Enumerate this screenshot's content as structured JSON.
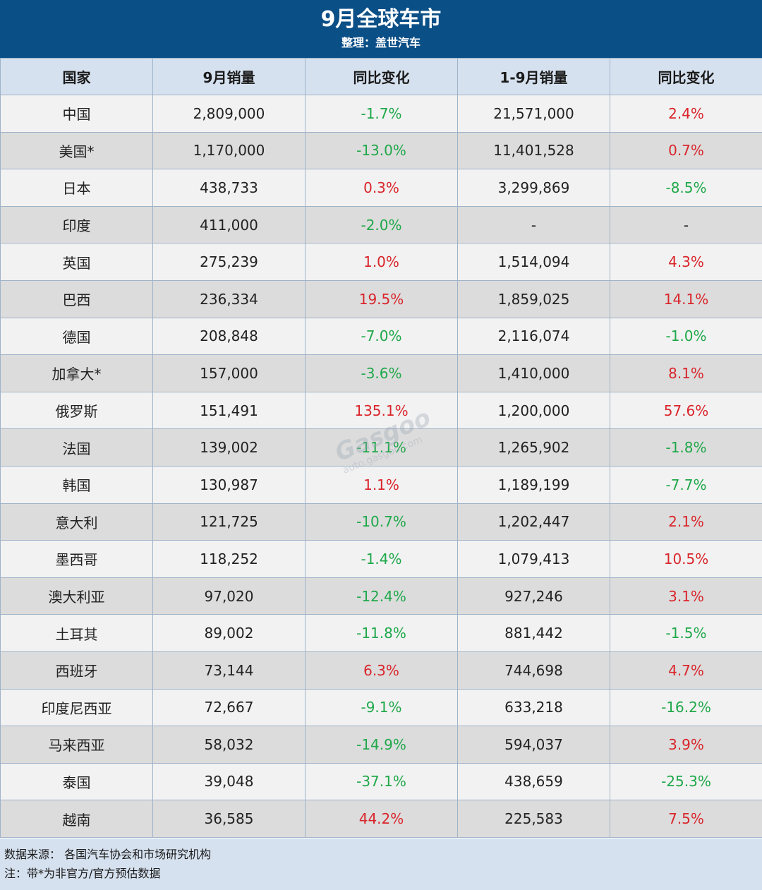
{
  "header": {
    "title": "9月全球车市",
    "subtitle": "整理：盖世汽车"
  },
  "table": {
    "columns": [
      "国家",
      "9月销量",
      "同比变化",
      "1-9月销量",
      "同比变化"
    ],
    "rows": [
      {
        "country": "中国",
        "sep_sales": "2,809,000",
        "sep_yoy": "-1.7%",
        "ytd_sales": "21,571,000",
        "ytd_yoy": "2.4%"
      },
      {
        "country": "美国*",
        "sep_sales": "1,170,000",
        "sep_yoy": "-13.0%",
        "ytd_sales": "11,401,528",
        "ytd_yoy": "0.7%"
      },
      {
        "country": "日本",
        "sep_sales": "438,733",
        "sep_yoy": "0.3%",
        "ytd_sales": "3,299,869",
        "ytd_yoy": "-8.5%"
      },
      {
        "country": "印度",
        "sep_sales": "411,000",
        "sep_yoy": "-2.0%",
        "ytd_sales": "-",
        "ytd_yoy": "-"
      },
      {
        "country": "英国",
        "sep_sales": "275,239",
        "sep_yoy": "1.0%",
        "ytd_sales": "1,514,094",
        "ytd_yoy": "4.3%"
      },
      {
        "country": "巴西",
        "sep_sales": "236,334",
        "sep_yoy": "19.5%",
        "ytd_sales": "1,859,025",
        "ytd_yoy": "14.1%"
      },
      {
        "country": "德国",
        "sep_sales": "208,848",
        "sep_yoy": "-7.0%",
        "ytd_sales": "2,116,074",
        "ytd_yoy": "-1.0%"
      },
      {
        "country": "加拿大*",
        "sep_sales": "157,000",
        "sep_yoy": "-3.6%",
        "ytd_sales": "1,410,000",
        "ytd_yoy": "8.1%"
      },
      {
        "country": "俄罗斯",
        "sep_sales": "151,491",
        "sep_yoy": "135.1%",
        "ytd_sales": "1,200,000",
        "ytd_yoy": "57.6%"
      },
      {
        "country": "法国",
        "sep_sales": "139,002",
        "sep_yoy": "-11.1%",
        "ytd_sales": "1,265,902",
        "ytd_yoy": "-1.8%"
      },
      {
        "country": "韩国",
        "sep_sales": "130,987",
        "sep_yoy": "1.1%",
        "ytd_sales": "1,189,199",
        "ytd_yoy": "-7.7%"
      },
      {
        "country": "意大利",
        "sep_sales": "121,725",
        "sep_yoy": "-10.7%",
        "ytd_sales": "1,202,447",
        "ytd_yoy": "2.1%"
      },
      {
        "country": "墨西哥",
        "sep_sales": "118,252",
        "sep_yoy": "-1.4%",
        "ytd_sales": "1,079,413",
        "ytd_yoy": "10.5%"
      },
      {
        "country": "澳大利亚",
        "sep_sales": "97,020",
        "sep_yoy": "-12.4%",
        "ytd_sales": "927,246",
        "ytd_yoy": "3.1%"
      },
      {
        "country": "土耳其",
        "sep_sales": "89,002",
        "sep_yoy": "-11.8%",
        "ytd_sales": "881,442",
        "ytd_yoy": "-1.5%"
      },
      {
        "country": "西班牙",
        "sep_sales": "73,144",
        "sep_yoy": "6.3%",
        "ytd_sales": "744,698",
        "ytd_yoy": "4.7%"
      },
      {
        "country": "印度尼西亚",
        "sep_sales": "72,667",
        "sep_yoy": "-9.1%",
        "ytd_sales": "633,218",
        "ytd_yoy": "-16.2%"
      },
      {
        "country": "马来西亚",
        "sep_sales": "58,032",
        "sep_yoy": "-14.9%",
        "ytd_sales": "594,037",
        "ytd_yoy": "3.9%"
      },
      {
        "country": "泰国",
        "sep_sales": "39,048",
        "sep_yoy": "-37.1%",
        "ytd_sales": "438,659",
        "ytd_yoy": "-25.3%"
      },
      {
        "country": "越南",
        "sep_sales": "36,585",
        "sep_yoy": "44.2%",
        "ytd_sales": "225,583",
        "ytd_yoy": "7.5%"
      }
    ]
  },
  "footer": {
    "source": "数据来源： 各国汽车协会和市场研究机构",
    "note": "注：带*为非官方/官方预估数据"
  },
  "watermark": {
    "logo": "Gasgoo",
    "cn": "盖世汽车",
    "url": "auto.gasgoo.com"
  },
  "colors": {
    "banner": "#0b4f87",
    "header_row": "#d6e1ef",
    "negative": "#1fa84a",
    "positive": "#d9252b"
  }
}
